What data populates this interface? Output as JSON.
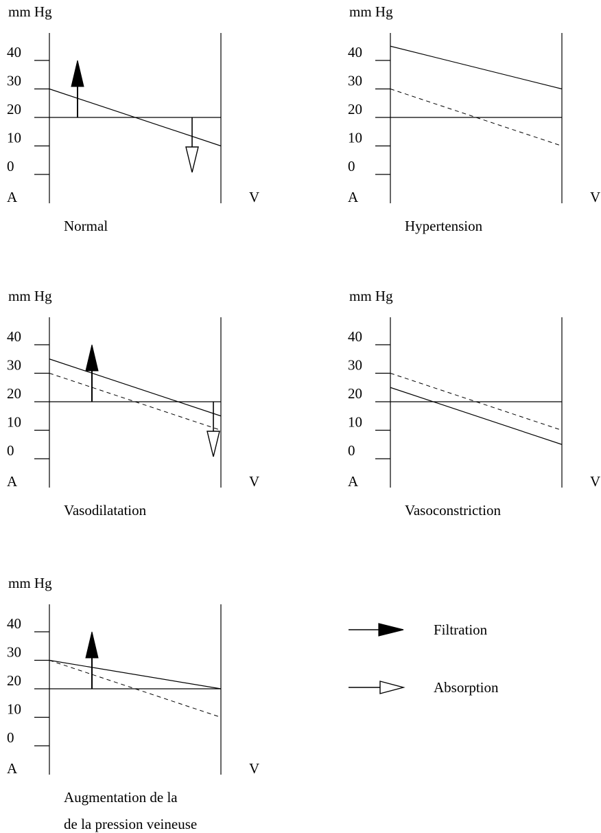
{
  "legend": {
    "filtration": "Filtration",
    "absorption": "Absorption"
  },
  "panels": [
    {
      "id": "normal",
      "unit": "mm Hg",
      "ticks": [
        "40",
        "30",
        "20",
        "10",
        "0"
      ],
      "left_end": "A",
      "right_end": "V",
      "caption": [
        "Normal"
      ],
      "reference_level": 20,
      "solid_line": [
        30,
        10
      ],
      "dashed_line": null,
      "filtration_arrow": true,
      "absorption_arrow": true
    },
    {
      "id": "hypertension",
      "unit": "mm Hg",
      "ticks": [
        "40",
        "30",
        "20",
        "10",
        "0"
      ],
      "left_end": "A",
      "right_end": "V",
      "caption": [
        "Hypertension"
      ],
      "reference_level": 20,
      "solid_line": [
        45,
        30
      ],
      "dashed_line": [
        30,
        10
      ],
      "filtration_arrow": true,
      "absorption_arrow": false
    },
    {
      "id": "vasodilatation",
      "unit": "mm Hg",
      "ticks": [
        "40",
        "30",
        "20",
        "10",
        "0"
      ],
      "left_end": "A",
      "right_end": "V",
      "caption": [
        "Vasodilatation"
      ],
      "reference_level": 20,
      "solid_line": [
        35,
        15
      ],
      "dashed_line": [
        30,
        10
      ],
      "filtration_arrow": true,
      "absorption_arrow": true
    },
    {
      "id": "vasoconstriction",
      "unit": "mm Hg",
      "ticks": [
        "40",
        "30",
        "20",
        "10",
        "0"
      ],
      "left_end": "A",
      "right_end": "V",
      "caption": [
        "Vasoconstriction"
      ],
      "reference_level": 20,
      "solid_line": [
        25,
        5
      ],
      "dashed_line": [
        30,
        10
      ],
      "filtration_arrow": true,
      "absorption_arrow": true
    },
    {
      "id": "venous-pressure",
      "unit": "mm Hg",
      "ticks": [
        "40",
        "30",
        "20",
        "10",
        "0"
      ],
      "left_end": "A",
      "right_end": "V",
      "caption": [
        "Augmentation de la",
        "de la pression veineuse"
      ],
      "reference_level": 20,
      "solid_line": [
        30,
        20
      ],
      "dashed_line": [
        30,
        10
      ],
      "filtration_arrow": true,
      "absorption_arrow": false
    }
  ]
}
